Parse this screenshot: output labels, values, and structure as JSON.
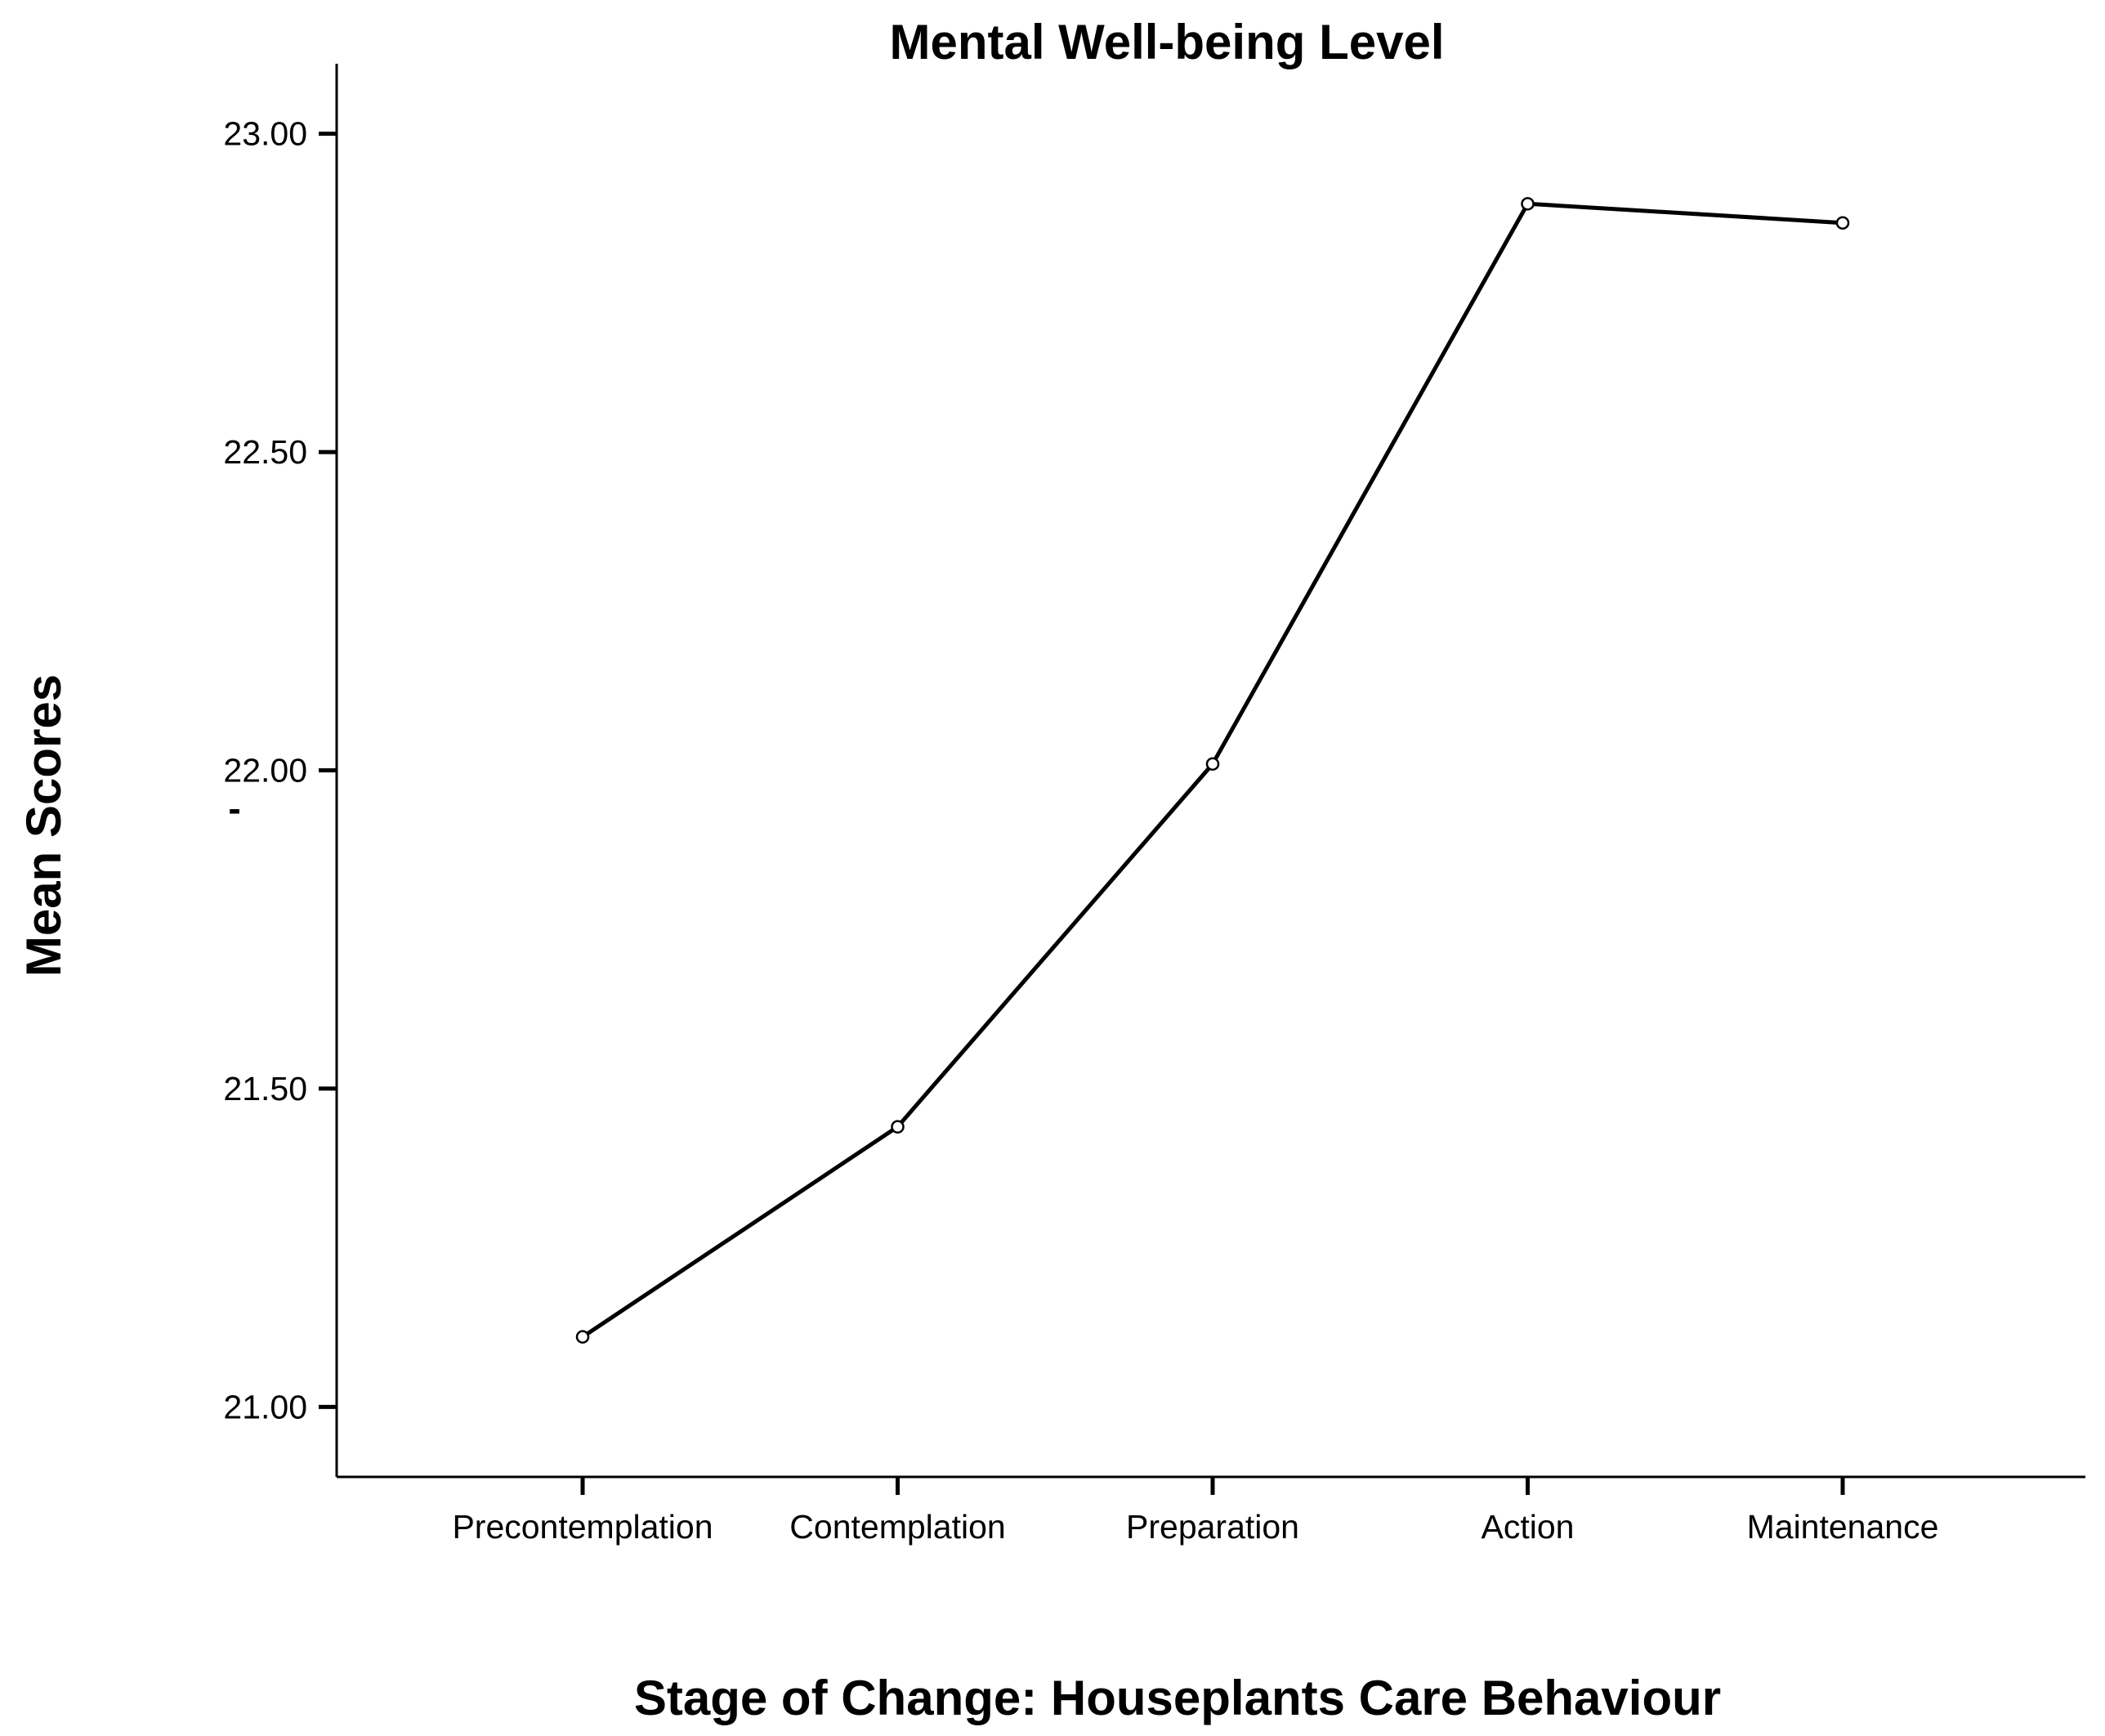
{
  "chart_data": {
    "type": "line",
    "title": "Mental Well-being Level",
    "xlabel": "Stage of Change: Houseplants Care Behaviour",
    "ylabel": "Mean Scores",
    "categories": [
      "Precontemplation",
      "Contemplation",
      "Preparation",
      "Action",
      "Maintenance"
    ],
    "values": [
      21.11,
      21.44,
      22.01,
      22.89,
      22.86
    ],
    "y_ticks": [
      "21.00",
      "21.50",
      "22.00",
      "22.50",
      "23.00"
    ],
    "ylim": [
      20.89,
      23.11
    ],
    "markers": "open-circle",
    "grid": false,
    "legend": "none",
    "stray_mark": "-"
  }
}
